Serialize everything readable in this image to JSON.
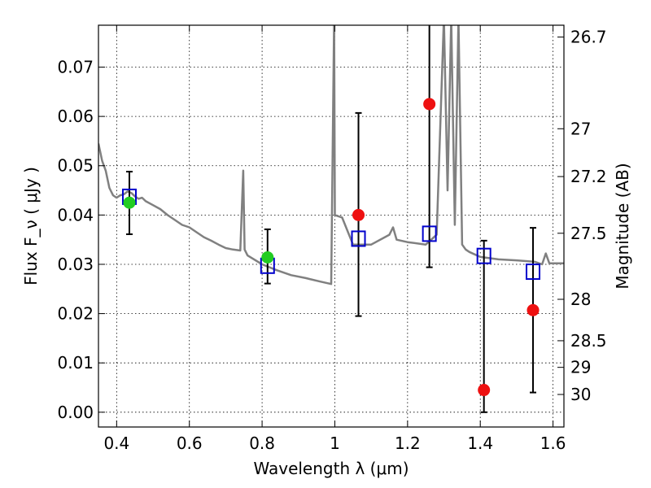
{
  "chart_data": {
    "type": "scatter",
    "xlabel": "Wavelength  λ (μm)",
    "ylabel_left": "Flux  F_ν  ( μJy )",
    "ylabel_right": "Magnitude (AB)",
    "xlim": [
      0.35,
      1.63
    ],
    "ylim": [
      -0.003,
      0.0785
    ],
    "grid": true,
    "x_ticks": [
      0.4,
      0.6,
      0.8,
      1.0,
      1.2,
      1.4,
      1.6
    ],
    "x_tick_labels": [
      "0.4",
      "0.6",
      "0.8",
      "1",
      "1.2",
      "1.4",
      "1.6"
    ],
    "y_ticks": [
      0.0,
      0.01,
      0.02,
      0.03,
      0.04,
      0.05,
      0.06,
      0.07
    ],
    "y_tick_labels": [
      "0.00",
      "0.01",
      "0.02",
      "0.03",
      "0.04",
      "0.05",
      "0.06",
      "0.07"
    ],
    "right_axis": {
      "tick_labels": [
        "26.7",
        "27",
        "27.2",
        "27.5",
        "28",
        "28.5",
        "29",
        "30"
      ],
      "tick_flux": [
        0.0761,
        0.0575,
        0.0478,
        0.0363,
        0.0229,
        0.0145,
        0.0091,
        0.0036
      ]
    },
    "series": [
      {
        "kind": "line",
        "color": "#808080",
        "x": [
          0.35,
          0.36,
          0.37,
          0.38,
          0.39,
          0.4,
          0.41,
          0.42,
          0.43,
          0.44,
          0.45,
          0.46,
          0.47,
          0.48,
          0.5,
          0.52,
          0.54,
          0.56,
          0.58,
          0.6,
          0.62,
          0.64,
          0.66,
          0.68,
          0.7,
          0.72,
          0.74,
          0.748,
          0.752,
          0.76,
          0.8,
          0.84,
          0.88,
          0.92,
          0.96,
          0.99,
          0.998,
          1.0,
          1.02,
          1.05,
          1.1,
          1.15,
          1.16,
          1.17,
          1.2,
          1.25,
          1.28,
          1.3,
          1.31,
          1.32,
          1.33,
          1.34,
          1.35,
          1.36,
          1.37,
          1.4,
          1.45,
          1.5,
          1.55,
          1.57,
          1.58,
          1.59,
          1.63
        ],
        "y": [
          0.0545,
          0.051,
          0.049,
          0.0455,
          0.044,
          0.0435,
          0.044,
          0.0442,
          0.0448,
          0.0445,
          0.0438,
          0.0433,
          0.0435,
          0.0428,
          0.042,
          0.0412,
          0.04,
          0.039,
          0.038,
          0.0375,
          0.0365,
          0.0355,
          0.0348,
          0.034,
          0.0333,
          0.033,
          0.0328,
          0.049,
          0.033,
          0.0318,
          0.03,
          0.0288,
          0.0278,
          0.0272,
          0.0265,
          0.026,
          0.08,
          0.04,
          0.0395,
          0.034,
          0.034,
          0.036,
          0.0375,
          0.035,
          0.0345,
          0.034,
          0.036,
          0.08,
          0.045,
          0.08,
          0.038,
          0.08,
          0.034,
          0.033,
          0.0325,
          0.0315,
          0.031,
          0.0308,
          0.0305,
          0.03,
          0.0322,
          0.0302,
          0.0302
        ]
      },
      {
        "kind": "points",
        "marker": "open-square",
        "color": "#0000cc",
        "x": [
          0.435,
          0.815,
          1.065,
          1.26,
          1.41,
          1.545
        ],
        "y": [
          0.0437,
          0.0297,
          0.0352,
          0.0362,
          0.0317,
          0.0285
        ]
      },
      {
        "kind": "points",
        "marker": "filled-circle",
        "color": "#22cc22",
        "x": [
          0.435,
          0.815
        ],
        "y": [
          0.0425,
          0.0314
        ]
      },
      {
        "kind": "points",
        "marker": "filled-circle",
        "color": "#ee1111",
        "x": [
          1.065,
          1.26,
          1.41,
          1.545
        ],
        "y": [
          0.04,
          0.0625,
          0.0045,
          0.0207
        ],
        "err_low": [
          0.0195,
          0.0294,
          0.0,
          0.004
        ],
        "err_high": [
          0.0607,
          0.081,
          0.0348,
          0.0374
        ]
      },
      {
        "kind": "errorbars",
        "color": "#000000",
        "x": [
          0.435,
          0.815
        ],
        "err_low": [
          0.0361,
          0.0261
        ],
        "err_high": [
          0.0488,
          0.0371
        ]
      }
    ]
  }
}
